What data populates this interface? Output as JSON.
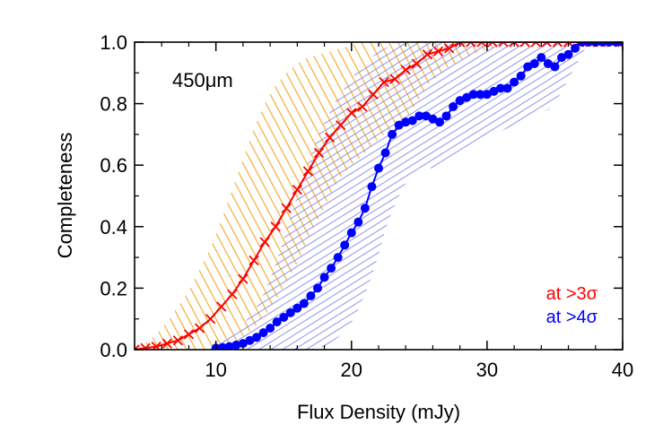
{
  "chart_data": {
    "type": "line",
    "annotation": "450μm",
    "xlabel": "Flux Density (mJy)",
    "ylabel": "Completeness",
    "xlim": [
      4,
      40
    ],
    "ylim": [
      0,
      1.0
    ],
    "x_ticks": [
      10,
      20,
      30,
      40
    ],
    "y_ticks": [
      0.0,
      0.2,
      0.4,
      0.6,
      0.8,
      1.0
    ],
    "x_tick_labels": [
      "10",
      "20",
      "30",
      "40"
    ],
    "y_tick_labels": [
      "0.0",
      "0.2",
      "0.4",
      "0.6",
      "0.8",
      "1.0"
    ],
    "grid": false,
    "legend_position": "bottom-right",
    "series": [
      {
        "name": "at >3σ",
        "color": "#ff0000",
        "marker": "x",
        "band_color": "#f5a623",
        "x": [
          4.0,
          4.8,
          5.6,
          6.4,
          7.2,
          8.0,
          8.8,
          9.6,
          10.4,
          11.2,
          12.0,
          12.8,
          13.6,
          14.4,
          15.2,
          16.0,
          16.8,
          17.6,
          18.4,
          19.2,
          20.0,
          20.8,
          21.6,
          22.4,
          23.2,
          24.0,
          24.8,
          25.6,
          26.4,
          27.2,
          28.0,
          28.8,
          29.6,
          30.4,
          31.2,
          32.0,
          32.8,
          33.6,
          34.4,
          35.2,
          36.0,
          36.8,
          37.6,
          38.4,
          39.2,
          40.0
        ],
        "values": [
          0.0,
          0.005,
          0.01,
          0.02,
          0.03,
          0.05,
          0.07,
          0.1,
          0.14,
          0.18,
          0.23,
          0.29,
          0.35,
          0.4,
          0.46,
          0.52,
          0.58,
          0.64,
          0.69,
          0.73,
          0.77,
          0.79,
          0.83,
          0.87,
          0.88,
          0.91,
          0.93,
          0.96,
          0.97,
          0.98,
          1.0,
          1.0,
          1.0,
          1.0,
          1.0,
          1.0,
          1.0,
          1.0,
          1.0,
          1.0,
          1.0,
          1.0,
          1.0,
          1.0,
          1.0,
          1.0
        ],
        "band_lower": [
          0.0,
          0.0,
          0.0,
          0.0,
          0.0,
          0.0,
          0.0,
          0.005,
          0.01,
          0.02,
          0.04,
          0.07,
          0.11,
          0.16,
          0.22,
          0.28,
          0.36,
          0.43,
          0.5,
          0.56,
          0.6,
          0.63,
          0.67,
          0.7,
          0.72,
          0.75,
          0.8,
          0.86,
          0.89,
          0.92,
          0.94,
          0.96,
          0.97,
          0.98,
          1.0,
          1.0,
          1.0,
          1.0,
          1.0,
          1.0,
          1.0,
          1.0,
          1.0,
          1.0,
          1.0,
          1.0
        ],
        "band_upper": [
          0.01,
          0.02,
          0.05,
          0.09,
          0.14,
          0.19,
          0.26,
          0.33,
          0.42,
          0.52,
          0.62,
          0.72,
          0.8,
          0.86,
          0.9,
          0.93,
          0.95,
          0.96,
          0.97,
          0.98,
          0.99,
          1.0,
          1.0,
          1.0,
          1.0,
          1.0,
          1.0,
          1.0,
          1.0,
          1.0,
          1.0,
          1.0,
          1.0,
          1.0,
          1.0,
          1.0,
          1.0,
          1.0,
          1.0,
          1.0,
          1.0,
          1.0,
          1.0,
          1.0,
          1.0,
          1.0
        ]
      },
      {
        "name": "at >4σ",
        "color": "#0000ff",
        "marker": "circle",
        "band_color": "#8b93ef",
        "x": [
          10.0,
          10.5,
          11.0,
          11.5,
          12.0,
          12.5,
          13.0,
          13.5,
          14.0,
          14.5,
          15.0,
          15.5,
          16.0,
          16.5,
          17.0,
          17.5,
          18.0,
          18.5,
          19.0,
          19.5,
          20.0,
          20.5,
          21.0,
          21.5,
          22.0,
          22.5,
          23.0,
          23.5,
          24.0,
          24.5,
          25.0,
          25.5,
          26.0,
          26.5,
          27.0,
          27.5,
          28.0,
          28.5,
          29.0,
          29.5,
          30.0,
          30.5,
          31.0,
          31.5,
          32.0,
          32.5,
          33.0,
          33.5,
          34.0,
          34.5,
          35.0,
          35.5,
          36.0,
          36.5,
          37.0,
          37.5,
          38.0,
          38.5,
          39.0,
          39.5,
          40.0
        ],
        "values": [
          0.005,
          0.007,
          0.01,
          0.015,
          0.02,
          0.03,
          0.04,
          0.055,
          0.07,
          0.09,
          0.105,
          0.12,
          0.135,
          0.15,
          0.175,
          0.2,
          0.235,
          0.265,
          0.3,
          0.34,
          0.38,
          0.415,
          0.46,
          0.53,
          0.59,
          0.64,
          0.7,
          0.73,
          0.74,
          0.745,
          0.76,
          0.76,
          0.75,
          0.74,
          0.76,
          0.79,
          0.81,
          0.82,
          0.83,
          0.83,
          0.83,
          0.84,
          0.85,
          0.85,
          0.87,
          0.89,
          0.92,
          0.93,
          0.95,
          0.93,
          0.92,
          0.95,
          0.96,
          0.98,
          1.0,
          1.0,
          1.0,
          1.0,
          1.0,
          1.0,
          1.0
        ],
        "band_lower": [
          0.0,
          0.0,
          0.0,
          0.0,
          0.0,
          0.0,
          0.0,
          0.0,
          0.0,
          0.0,
          0.0,
          0.0,
          0.0,
          0.0,
          0.0,
          0.005,
          0.01,
          0.02,
          0.04,
          0.06,
          0.09,
          0.13,
          0.18,
          0.24,
          0.31,
          0.39,
          0.45,
          0.5,
          0.54,
          0.56,
          0.58,
          0.59,
          0.59,
          0.59,
          0.6,
          0.62,
          0.64,
          0.66,
          0.67,
          0.68,
          0.69,
          0.7,
          0.71,
          0.72,
          0.73,
          0.74,
          0.75,
          0.76,
          0.77,
          0.78,
          0.8,
          0.84,
          0.88,
          0.92,
          0.96,
          1.0,
          1.0,
          1.0,
          1.0,
          1.0,
          1.0
        ],
        "band_upper": [
          0.02,
          0.03,
          0.04,
          0.06,
          0.08,
          0.11,
          0.14,
          0.18,
          0.23,
          0.29,
          0.36,
          0.43,
          0.5,
          0.57,
          0.63,
          0.69,
          0.74,
          0.78,
          0.82,
          0.85,
          0.88,
          0.91,
          0.93,
          0.95,
          0.97,
          0.98,
          0.99,
          1.0,
          1.0,
          1.0,
          1.0,
          1.0,
          1.0,
          1.0,
          1.0,
          1.0,
          1.0,
          1.0,
          1.0,
          1.0,
          1.0,
          1.0,
          1.0,
          1.0,
          1.0,
          1.0,
          1.0,
          1.0,
          1.0,
          1.0,
          1.0,
          1.0,
          1.0,
          1.0,
          1.0,
          1.0,
          1.0,
          1.0,
          1.0,
          1.0,
          1.0
        ]
      }
    ]
  }
}
